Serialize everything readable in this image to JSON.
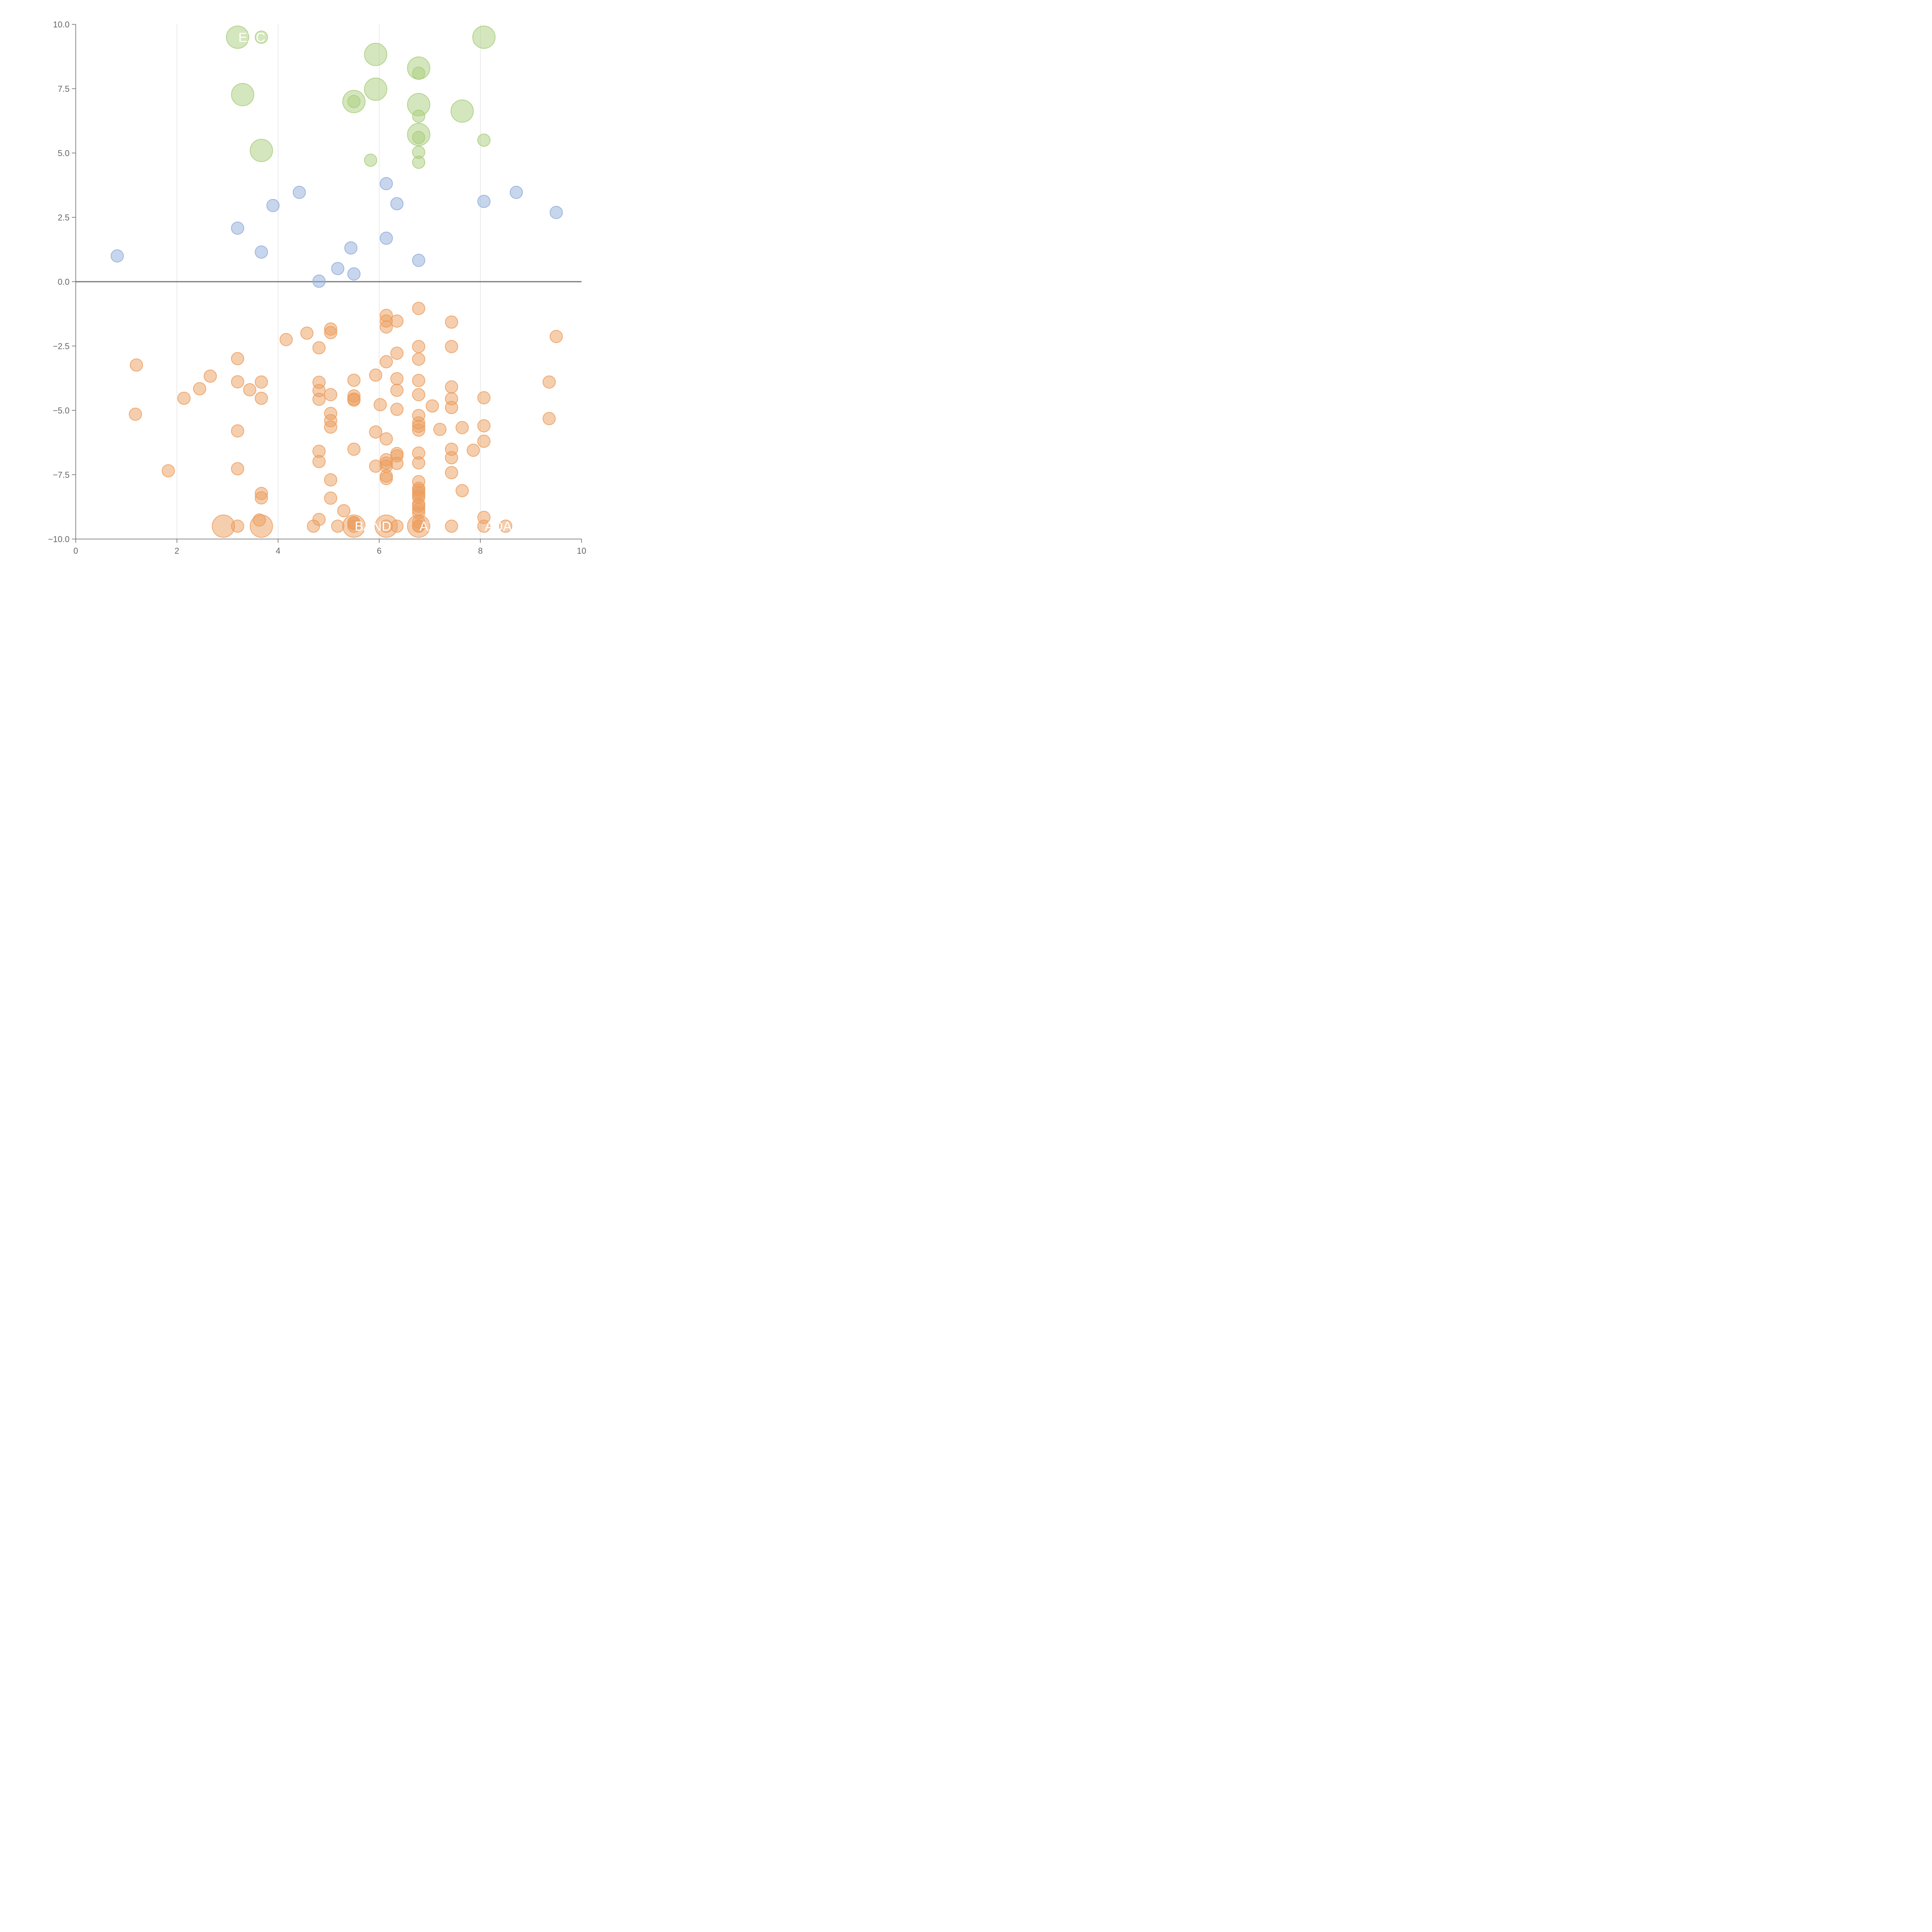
{
  "chart_data": {
    "type": "scatter",
    "xlim": [
      0,
      10
    ],
    "ylim": [
      -10,
      10
    ],
    "x_ticks": [
      "0",
      "2",
      "4",
      "6",
      "8",
      "10"
    ],
    "y_ticks": [
      "−10.0",
      "−7.5",
      "−5.0",
      "−2.5",
      "0.0",
      "2.5",
      "5.0",
      "7.5",
      "10.0"
    ],
    "x_tick_values": [
      0,
      2,
      4,
      6,
      8,
      10
    ],
    "y_tick_values": [
      -10,
      -7.5,
      -5,
      -2.5,
      0,
      2.5,
      5,
      7.5,
      10
    ],
    "grid": "vertical",
    "zero_line": 0,
    "colors": {
      "green": "#a9cd7b",
      "blue": "#8fadd9",
      "orange": "#ec9d5e",
      "axis": "#666666",
      "grid": "#dddddd",
      "zero_line": "#777777"
    },
    "series": [
      {
        "color_key": "green",
        "points": [
          {
            "x": 3.2,
            "y": 9.5,
            "large": true
          },
          {
            "x": 3.67,
            "y": 9.5
          },
          {
            "x": 8.07,
            "y": 9.5,
            "large": true
          },
          {
            "x": 5.93,
            "y": 8.83,
            "large": true
          },
          {
            "x": 6.78,
            "y": 8.3,
            "large": true
          },
          {
            "x": 6.78,
            "y": 8.1
          },
          {
            "x": 3.3,
            "y": 7.27,
            "large": true
          },
          {
            "x": 5.93,
            "y": 7.48,
            "large": true
          },
          {
            "x": 5.5,
            "y": 7.0,
            "large": true
          },
          {
            "x": 5.5,
            "y": 7.0
          },
          {
            "x": 6.78,
            "y": 6.88,
            "large": true
          },
          {
            "x": 7.64,
            "y": 6.63,
            "large": true
          },
          {
            "x": 6.78,
            "y": 6.43
          },
          {
            "x": 6.78,
            "y": 5.72,
            "large": true
          },
          {
            "x": 6.78,
            "y": 5.6
          },
          {
            "x": 8.07,
            "y": 5.5
          },
          {
            "x": 3.67,
            "y": 5.1,
            "large": true
          },
          {
            "x": 6.78,
            "y": 5.03
          },
          {
            "x": 5.83,
            "y": 4.72
          },
          {
            "x": 6.78,
            "y": 4.64
          }
        ]
      },
      {
        "color_key": "blue",
        "points": [
          {
            "x": 6.14,
            "y": 3.81
          },
          {
            "x": 4.42,
            "y": 3.47
          },
          {
            "x": 8.71,
            "y": 3.47
          },
          {
            "x": 8.07,
            "y": 3.12
          },
          {
            "x": 6.35,
            "y": 3.03
          },
          {
            "x": 3.9,
            "y": 2.96
          },
          {
            "x": 9.5,
            "y": 2.69
          },
          {
            "x": 3.2,
            "y": 2.08
          },
          {
            "x": 6.14,
            "y": 1.69
          },
          {
            "x": 5.44,
            "y": 1.31
          },
          {
            "x": 3.67,
            "y": 1.15
          },
          {
            "x": 0.82,
            "y": 1.0
          },
          {
            "x": 6.78,
            "y": 0.83
          },
          {
            "x": 5.18,
            "y": 0.51
          },
          {
            "x": 5.5,
            "y": 0.3
          },
          {
            "x": 4.81,
            "y": 0.02
          }
        ]
      },
      {
        "color_key": "orange",
        "points": [
          {
            "x": 6.78,
            "y": -1.04
          },
          {
            "x": 6.14,
            "y": -1.31
          },
          {
            "x": 6.14,
            "y": -1.53
          },
          {
            "x": 6.35,
            "y": -1.53
          },
          {
            "x": 7.43,
            "y": -1.57
          },
          {
            "x": 6.14,
            "y": -1.76
          },
          {
            "x": 5.04,
            "y": -1.84
          },
          {
            "x": 5.04,
            "y": -1.98
          },
          {
            "x": 4.57,
            "y": -2.0
          },
          {
            "x": 9.5,
            "y": -2.13
          },
          {
            "x": 4.16,
            "y": -2.25
          },
          {
            "x": 6.78,
            "y": -2.52
          },
          {
            "x": 7.43,
            "y": -2.52
          },
          {
            "x": 4.81,
            "y": -2.57
          },
          {
            "x": 6.35,
            "y": -2.78
          },
          {
            "x": 3.2,
            "y": -2.99
          },
          {
            "x": 6.78,
            "y": -3.01
          },
          {
            "x": 6.14,
            "y": -3.11
          },
          {
            "x": 1.2,
            "y": -3.24
          },
          {
            "x": 5.93,
            "y": -3.63
          },
          {
            "x": 2.66,
            "y": -3.67
          },
          {
            "x": 6.35,
            "y": -3.77
          },
          {
            "x": 5.5,
            "y": -3.83
          },
          {
            "x": 6.78,
            "y": -3.84
          },
          {
            "x": 3.2,
            "y": -3.89
          },
          {
            "x": 3.67,
            "y": -3.9
          },
          {
            "x": 9.36,
            "y": -3.9
          },
          {
            "x": 4.81,
            "y": -3.91
          },
          {
            "x": 7.43,
            "y": -4.09
          },
          {
            "x": 2.45,
            "y": -4.16
          },
          {
            "x": 3.44,
            "y": -4.2
          },
          {
            "x": 4.81,
            "y": -4.23
          },
          {
            "x": 6.35,
            "y": -4.22
          },
          {
            "x": 5.04,
            "y": -4.39
          },
          {
            "x": 6.78,
            "y": -4.39
          },
          {
            "x": 5.5,
            "y": -4.44
          },
          {
            "x": 5.5,
            "y": -4.56
          },
          {
            "x": 8.07,
            "y": -4.51
          },
          {
            "x": 2.14,
            "y": -4.53
          },
          {
            "x": 3.67,
            "y": -4.53
          },
          {
            "x": 7.43,
            "y": -4.55
          },
          {
            "x": 5.5,
            "y": -4.6
          },
          {
            "x": 4.81,
            "y": -4.57
          },
          {
            "x": 6.02,
            "y": -4.78
          },
          {
            "x": 7.05,
            "y": -4.83
          },
          {
            "x": 7.43,
            "y": -4.89
          },
          {
            "x": 6.35,
            "y": -4.96
          },
          {
            "x": 1.18,
            "y": -5.15
          },
          {
            "x": 5.04,
            "y": -5.12
          },
          {
            "x": 6.78,
            "y": -5.2
          },
          {
            "x": 9.36,
            "y": -5.32
          },
          {
            "x": 5.04,
            "y": -5.4
          },
          {
            "x": 6.78,
            "y": -5.49
          },
          {
            "x": 8.07,
            "y": -5.6
          },
          {
            "x": 6.78,
            "y": -5.62
          },
          {
            "x": 5.04,
            "y": -5.65
          },
          {
            "x": 7.64,
            "y": -5.67
          },
          {
            "x": 7.2,
            "y": -5.74
          },
          {
            "x": 6.78,
            "y": -5.77
          },
          {
            "x": 3.2,
            "y": -5.8
          },
          {
            "x": 5.93,
            "y": -5.84
          },
          {
            "x": 6.14,
            "y": -6.11
          },
          {
            "x": 8.07,
            "y": -6.2
          },
          {
            "x": 5.5,
            "y": -6.51
          },
          {
            "x": 7.43,
            "y": -6.51
          },
          {
            "x": 7.86,
            "y": -6.55
          },
          {
            "x": 4.81,
            "y": -6.59
          },
          {
            "x": 6.78,
            "y": -6.66
          },
          {
            "x": 6.35,
            "y": -6.68
          },
          {
            "x": 6.35,
            "y": -6.77
          },
          {
            "x": 7.43,
            "y": -6.84
          },
          {
            "x": 6.14,
            "y": -6.92
          },
          {
            "x": 4.81,
            "y": -6.99
          },
          {
            "x": 6.14,
            "y": -7.05
          },
          {
            "x": 6.78,
            "y": -7.04
          },
          {
            "x": 6.35,
            "y": -7.06
          },
          {
            "x": 6.14,
            "y": -7.17
          },
          {
            "x": 5.93,
            "y": -7.17
          },
          {
            "x": 3.2,
            "y": -7.27
          },
          {
            "x": 1.83,
            "y": -7.35
          },
          {
            "x": 7.43,
            "y": -7.42
          },
          {
            "x": 6.14,
            "y": -7.55
          },
          {
            "x": 6.14,
            "y": -7.65
          },
          {
            "x": 5.04,
            "y": -7.7
          },
          {
            "x": 6.78,
            "y": -7.77
          },
          {
            "x": 6.78,
            "y": -8.03
          },
          {
            "x": 6.78,
            "y": -8.1
          },
          {
            "x": 7.64,
            "y": -8.12
          },
          {
            "x": 6.78,
            "y": -8.2
          },
          {
            "x": 3.67,
            "y": -8.23
          },
          {
            "x": 6.78,
            "y": -8.3
          },
          {
            "x": 6.78,
            "y": -8.38
          },
          {
            "x": 3.67,
            "y": -8.4
          },
          {
            "x": 5.04,
            "y": -8.41
          },
          {
            "x": 6.78,
            "y": -8.64
          },
          {
            "x": 6.78,
            "y": -8.72
          },
          {
            "x": 6.78,
            "y": -8.85
          },
          {
            "x": 5.3,
            "y": -8.9
          },
          {
            "x": 6.78,
            "y": -8.98
          },
          {
            "x": 8.07,
            "y": -9.16
          },
          {
            "x": 4.81,
            "y": -9.24
          },
          {
            "x": 3.63,
            "y": -9.26
          },
          {
            "x": 6.78,
            "y": -9.34
          },
          {
            "x": 5.5,
            "y": -9.36
          },
          {
            "x": 5.5,
            "y": -9.4
          },
          {
            "x": 2.92,
            "y": -9.5,
            "large": true
          },
          {
            "x": 3.2,
            "y": -9.5
          },
          {
            "x": 3.67,
            "y": -9.5,
            "large": true
          },
          {
            "x": 4.7,
            "y": -9.5
          },
          {
            "x": 5.18,
            "y": -9.5
          },
          {
            "x": 5.5,
            "y": -9.5,
            "large": true
          },
          {
            "x": 5.5,
            "y": -9.5
          },
          {
            "x": 6.14,
            "y": -9.5,
            "large": true
          },
          {
            "x": 6.14,
            "y": -9.5
          },
          {
            "x": 6.35,
            "y": -9.5
          },
          {
            "x": 6.78,
            "y": -9.5
          },
          {
            "x": 6.78,
            "y": -9.5,
            "large": true
          },
          {
            "x": 6.78,
            "y": -9.5
          },
          {
            "x": 7.43,
            "y": -9.5
          },
          {
            "x": 8.07,
            "y": -9.5
          },
          {
            "x": 8.5,
            "y": -9.5
          }
        ]
      }
    ],
    "annotations": [
      {
        "text": "EXC",
        "x": 3.2,
        "y": 9.5
      },
      {
        "text": "BAND",
        "x": 5.5,
        "y": -9.5
      },
      {
        "text": "AXS",
        "x": 6.78,
        "y": -9.5
      },
      {
        "text": "ADA",
        "x": 8.07,
        "y": -9.5
      }
    ]
  }
}
